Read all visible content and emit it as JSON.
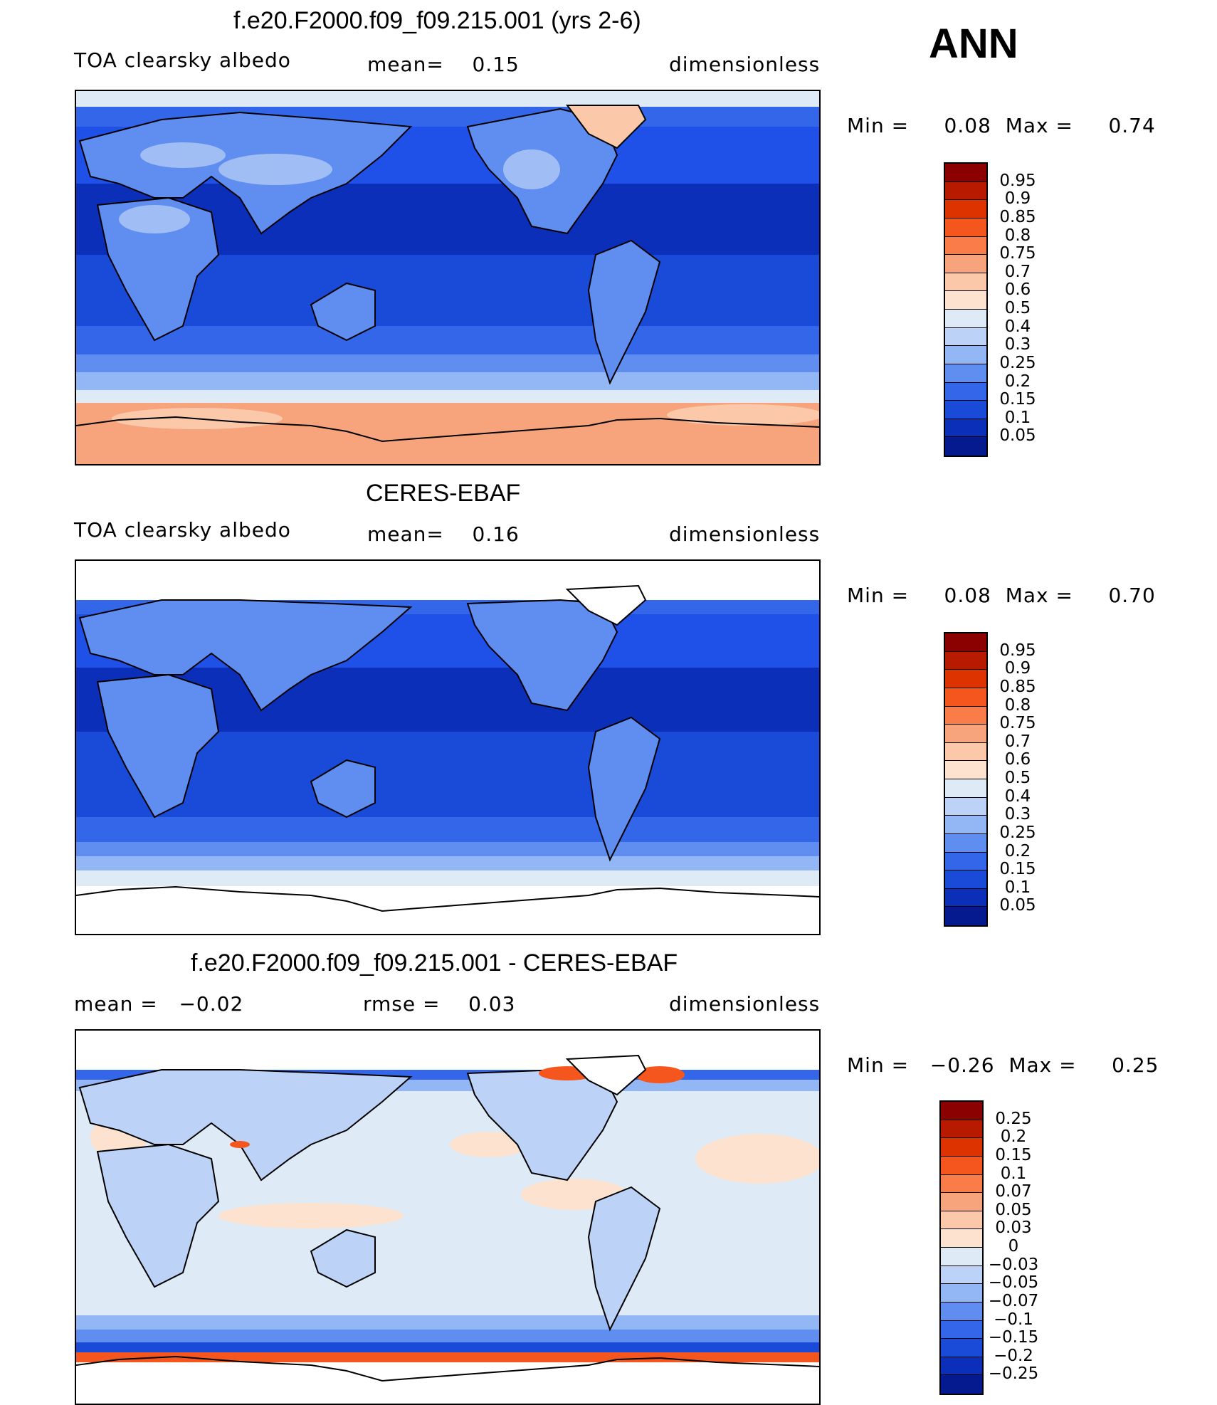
{
  "season": "ANN",
  "panels": [
    {
      "title": "f.e20.F2000.f09_f09.215.001 (yrs 2-6)",
      "left": "TOA clearsky albedo",
      "middle": "mean=    0.15",
      "right": "dimensionless",
      "minmax": "Min =     0.08  Max =     0.74",
      "scale": "abs",
      "has_antarctica": true
    },
    {
      "title": "CERES-EBAF",
      "left": "TOA clearsky albedo",
      "middle": "mean=    0.16",
      "right": "dimensionless",
      "minmax": "Min =     0.08  Max =     0.70",
      "scale": "abs",
      "has_antarctica": false
    },
    {
      "title": "f.e20.F2000.f09_f09.215.001 - CERES-EBAF",
      "left": "mean =   −0.02",
      "middle": "rmse =    0.03",
      "right": "dimensionless",
      "minmax": "Min =   −0.26  Max =     0.25",
      "scale": "diff",
      "has_antarctica": false
    }
  ],
  "colorbars": {
    "abs": {
      "labels": [
        "0.95",
        "0.9",
        "0.85",
        "0.8",
        "0.75",
        "0.7",
        "0.6",
        "0.5",
        "0.4",
        "0.3",
        "0.25",
        "0.2",
        "0.15",
        "0.1",
        "0.05"
      ],
      "colors": [
        "#8b0000",
        "#b81a00",
        "#dd3300",
        "#f5561d",
        "#fa7c48",
        "#f7a47c",
        "#fbc9aa",
        "#fde3cf",
        "#deebf7",
        "#bcd3f7",
        "#93b6f5",
        "#5f8df0",
        "#3366e8",
        "#1a4ad8",
        "#0b2fb8",
        "#061a8f"
      ]
    },
    "diff": {
      "labels": [
        "0.25",
        "0.2",
        "0.15",
        "0.1",
        "0.07",
        "0.05",
        "0.03",
        "0",
        "−0.03",
        "−0.05",
        "−0.07",
        "−0.1",
        "−0.15",
        "−0.2",
        "−0.25"
      ],
      "colors": [
        "#8b0000",
        "#b81a00",
        "#dd3300",
        "#f5561d",
        "#fa7c48",
        "#f7a47c",
        "#fbc9aa",
        "#fde3cf",
        "#deebf7",
        "#bcd3f7",
        "#93b6f5",
        "#5f8df0",
        "#3366e8",
        "#1a4ad8",
        "#0b2fb8",
        "#061a8f"
      ]
    }
  }
}
